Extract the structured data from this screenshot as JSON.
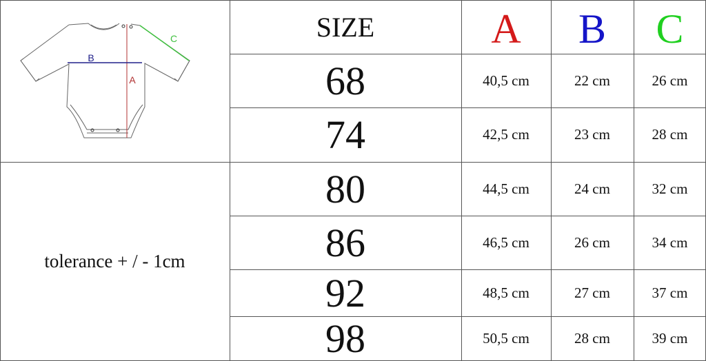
{
  "header": {
    "size_label": "SIZE",
    "a_label": "A",
    "b_label": "B",
    "c_label": "C"
  },
  "colors": {
    "a": "#d41a1a",
    "b": "#1515c8",
    "c": "#20d020"
  },
  "diagram": {
    "label_a": "A",
    "label_b": "B",
    "label_c": "C",
    "icon": "baby-bodysuit-diagram"
  },
  "note": "tolerance + / - 1cm",
  "rows": [
    {
      "size": "68",
      "a": "40,5 cm",
      "b": "22 cm",
      "c": "26 cm"
    },
    {
      "size": "74",
      "a": "42,5 cm",
      "b": "23 cm",
      "c": "28 cm"
    },
    {
      "size": "80",
      "a": "44,5 cm",
      "b": "24 cm",
      "c": "32 cm"
    },
    {
      "size": "86",
      "a": "46,5 cm",
      "b": "26 cm",
      "c": "34 cm"
    },
    {
      "size": "92",
      "a": "48,5 cm",
      "b": "27 cm",
      "c": "37 cm"
    },
    {
      "size": "98",
      "a": "50,5 cm",
      "b": "28 cm",
      "c": "39 cm"
    }
  ]
}
